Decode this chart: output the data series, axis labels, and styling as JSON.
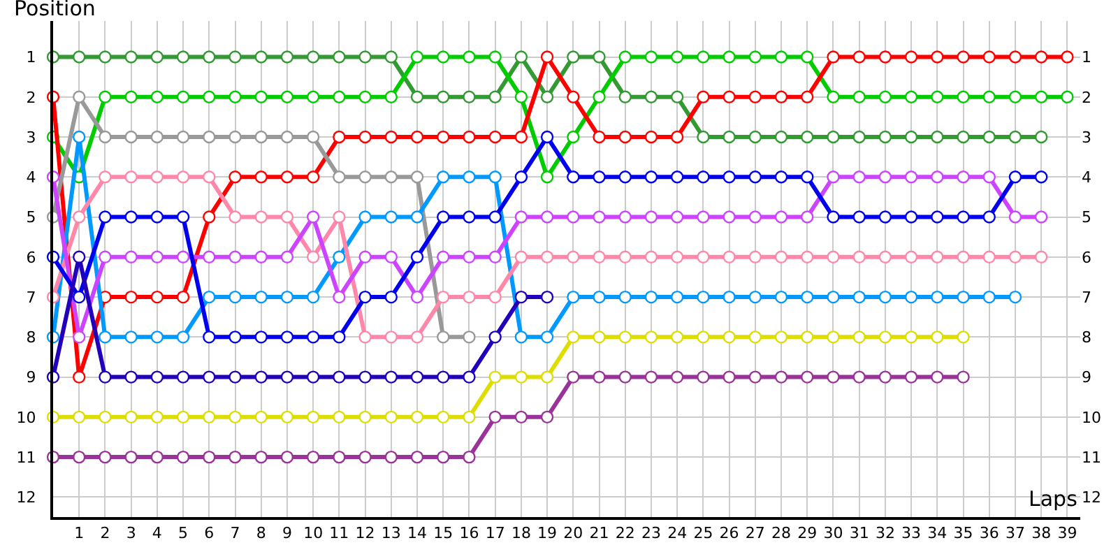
{
  "chart_data": {
    "type": "line",
    "xlabel": "Laps",
    "ylabel": "Position",
    "x": [
      0,
      1,
      2,
      3,
      4,
      5,
      6,
      7,
      8,
      9,
      10,
      11,
      12,
      13,
      14,
      15,
      16,
      17,
      18,
      19,
      20,
      21,
      22,
      23,
      24,
      25,
      26,
      27,
      28,
      29,
      30,
      31,
      32,
      33,
      34,
      35,
      36,
      37,
      38,
      39
    ],
    "xlim": [
      0,
      39.5
    ],
    "xticks": [
      1,
      2,
      3,
      4,
      5,
      6,
      7,
      8,
      9,
      10,
      11,
      12,
      13,
      14,
      15,
      16,
      17,
      18,
      19,
      20,
      21,
      22,
      23,
      24,
      25,
      26,
      27,
      28,
      29,
      30,
      31,
      32,
      33,
      34,
      35,
      36,
      37,
      38,
      39
    ],
    "ylim": [
      12.5,
      0.1
    ],
    "yticks": [
      1,
      2,
      3,
      4,
      5,
      6,
      7,
      8,
      9,
      10,
      11,
      12
    ],
    "y2lim": [
      12.5,
      0.1
    ],
    "y2ticks": [
      1,
      2,
      3,
      4,
      5,
      6,
      7,
      8,
      9,
      10,
      11,
      12
    ],
    "grid": true,
    "marker": "circle",
    "line_style": "solid",
    "series": [
      {
        "color": "#339933",
        "values": [
          1,
          1,
          1,
          1,
          1,
          1,
          1,
          1,
          1,
          1,
          1,
          1,
          1,
          1,
          2,
          2,
          2,
          2,
          1,
          2,
          1,
          1,
          2,
          2,
          2,
          3,
          3,
          3,
          3,
          3,
          3,
          3,
          3,
          3,
          3,
          3,
          3,
          3,
          3,
          null
        ]
      },
      {
        "color": "#00cc00",
        "values": [
          3,
          4,
          2,
          2,
          2,
          2,
          2,
          2,
          2,
          2,
          2,
          2,
          2,
          2,
          1,
          1,
          1,
          1,
          2,
          4,
          3,
          2,
          1,
          1,
          1,
          1,
          1,
          1,
          1,
          1,
          2,
          2,
          2,
          2,
          2,
          2,
          2,
          2,
          2,
          2
        ]
      },
      {
        "color": "#ff0000",
        "values": [
          2,
          9,
          7,
          7,
          7,
          7,
          5,
          4,
          4,
          4,
          4,
          3,
          3,
          3,
          3,
          3,
          3,
          3,
          3,
          1,
          2,
          3,
          3,
          3,
          3,
          2,
          2,
          2,
          2,
          2,
          1,
          1,
          1,
          1,
          1,
          1,
          1,
          1,
          1,
          1
        ]
      },
      {
        "color": "#999999",
        "values": [
          5,
          2,
          3,
          3,
          3,
          3,
          3,
          3,
          3,
          3,
          3,
          4,
          4,
          4,
          4,
          8,
          8,
          null,
          null,
          null,
          null,
          null,
          null,
          null,
          null,
          null,
          null,
          null,
          null,
          null,
          null,
          null,
          null,
          null,
          null,
          null,
          null,
          null,
          null,
          null
        ]
      },
      {
        "color": "#0099ff",
        "values": [
          8,
          3,
          8,
          8,
          8,
          8,
          7,
          7,
          7,
          7,
          7,
          6,
          5,
          5,
          5,
          4,
          4,
          4,
          8,
          8,
          7,
          7,
          7,
          7,
          7,
          7,
          7,
          7,
          7,
          7,
          7,
          7,
          7,
          7,
          7,
          7,
          7,
          7,
          null,
          null
        ]
      },
      {
        "color": "#ff88aa",
        "values": [
          7,
          5,
          4,
          4,
          4,
          4,
          4,
          5,
          5,
          5,
          6,
          5,
          8,
          8,
          8,
          7,
          7,
          7,
          6,
          6,
          6,
          6,
          6,
          6,
          6,
          6,
          6,
          6,
          6,
          6,
          6,
          6,
          6,
          6,
          6,
          6,
          6,
          6,
          6,
          null
        ]
      },
      {
        "color": "#cc44ff",
        "values": [
          4,
          8,
          6,
          6,
          6,
          6,
          6,
          6,
          6,
          6,
          5,
          7,
          6,
          6,
          7,
          6,
          6,
          6,
          5,
          5,
          5,
          5,
          5,
          5,
          5,
          5,
          5,
          5,
          5,
          5,
          4,
          4,
          4,
          4,
          4,
          4,
          4,
          5,
          5,
          null
        ]
      },
      {
        "color": "#0000ee",
        "values": [
          6,
          7,
          5,
          5,
          5,
          5,
          8,
          8,
          8,
          8,
          8,
          8,
          7,
          7,
          6,
          5,
          5,
          5,
          4,
          3,
          4,
          4,
          4,
          4,
          4,
          4,
          4,
          4,
          4,
          4,
          5,
          5,
          5,
          5,
          5,
          5,
          5,
          4,
          4,
          null
        ]
      },
      {
        "color": "#2200bb",
        "values": [
          9,
          6,
          9,
          9,
          9,
          9,
          9,
          9,
          9,
          9,
          9,
          9,
          9,
          9,
          9,
          9,
          9,
          8,
          7,
          7,
          null,
          null,
          null,
          null,
          null,
          null,
          null,
          null,
          null,
          null,
          null,
          null,
          null,
          null,
          null,
          null,
          null,
          null,
          null,
          null
        ]
      },
      {
        "color": "#dddd00",
        "values": [
          10,
          10,
          10,
          10,
          10,
          10,
          10,
          10,
          10,
          10,
          10,
          10,
          10,
          10,
          10,
          10,
          10,
          9,
          9,
          9,
          8,
          8,
          8,
          8,
          8,
          8,
          8,
          8,
          8,
          8,
          8,
          8,
          8,
          8,
          8,
          8,
          null,
          null,
          null,
          null
        ]
      },
      {
        "color": "#993399",
        "values": [
          11,
          11,
          11,
          11,
          11,
          11,
          11,
          11,
          11,
          11,
          11,
          11,
          11,
          11,
          11,
          11,
          11,
          10,
          10,
          10,
          9,
          9,
          9,
          9,
          9,
          9,
          9,
          9,
          9,
          9,
          9,
          9,
          9,
          9,
          9,
          9,
          null,
          null,
          null,
          null
        ]
      }
    ]
  }
}
